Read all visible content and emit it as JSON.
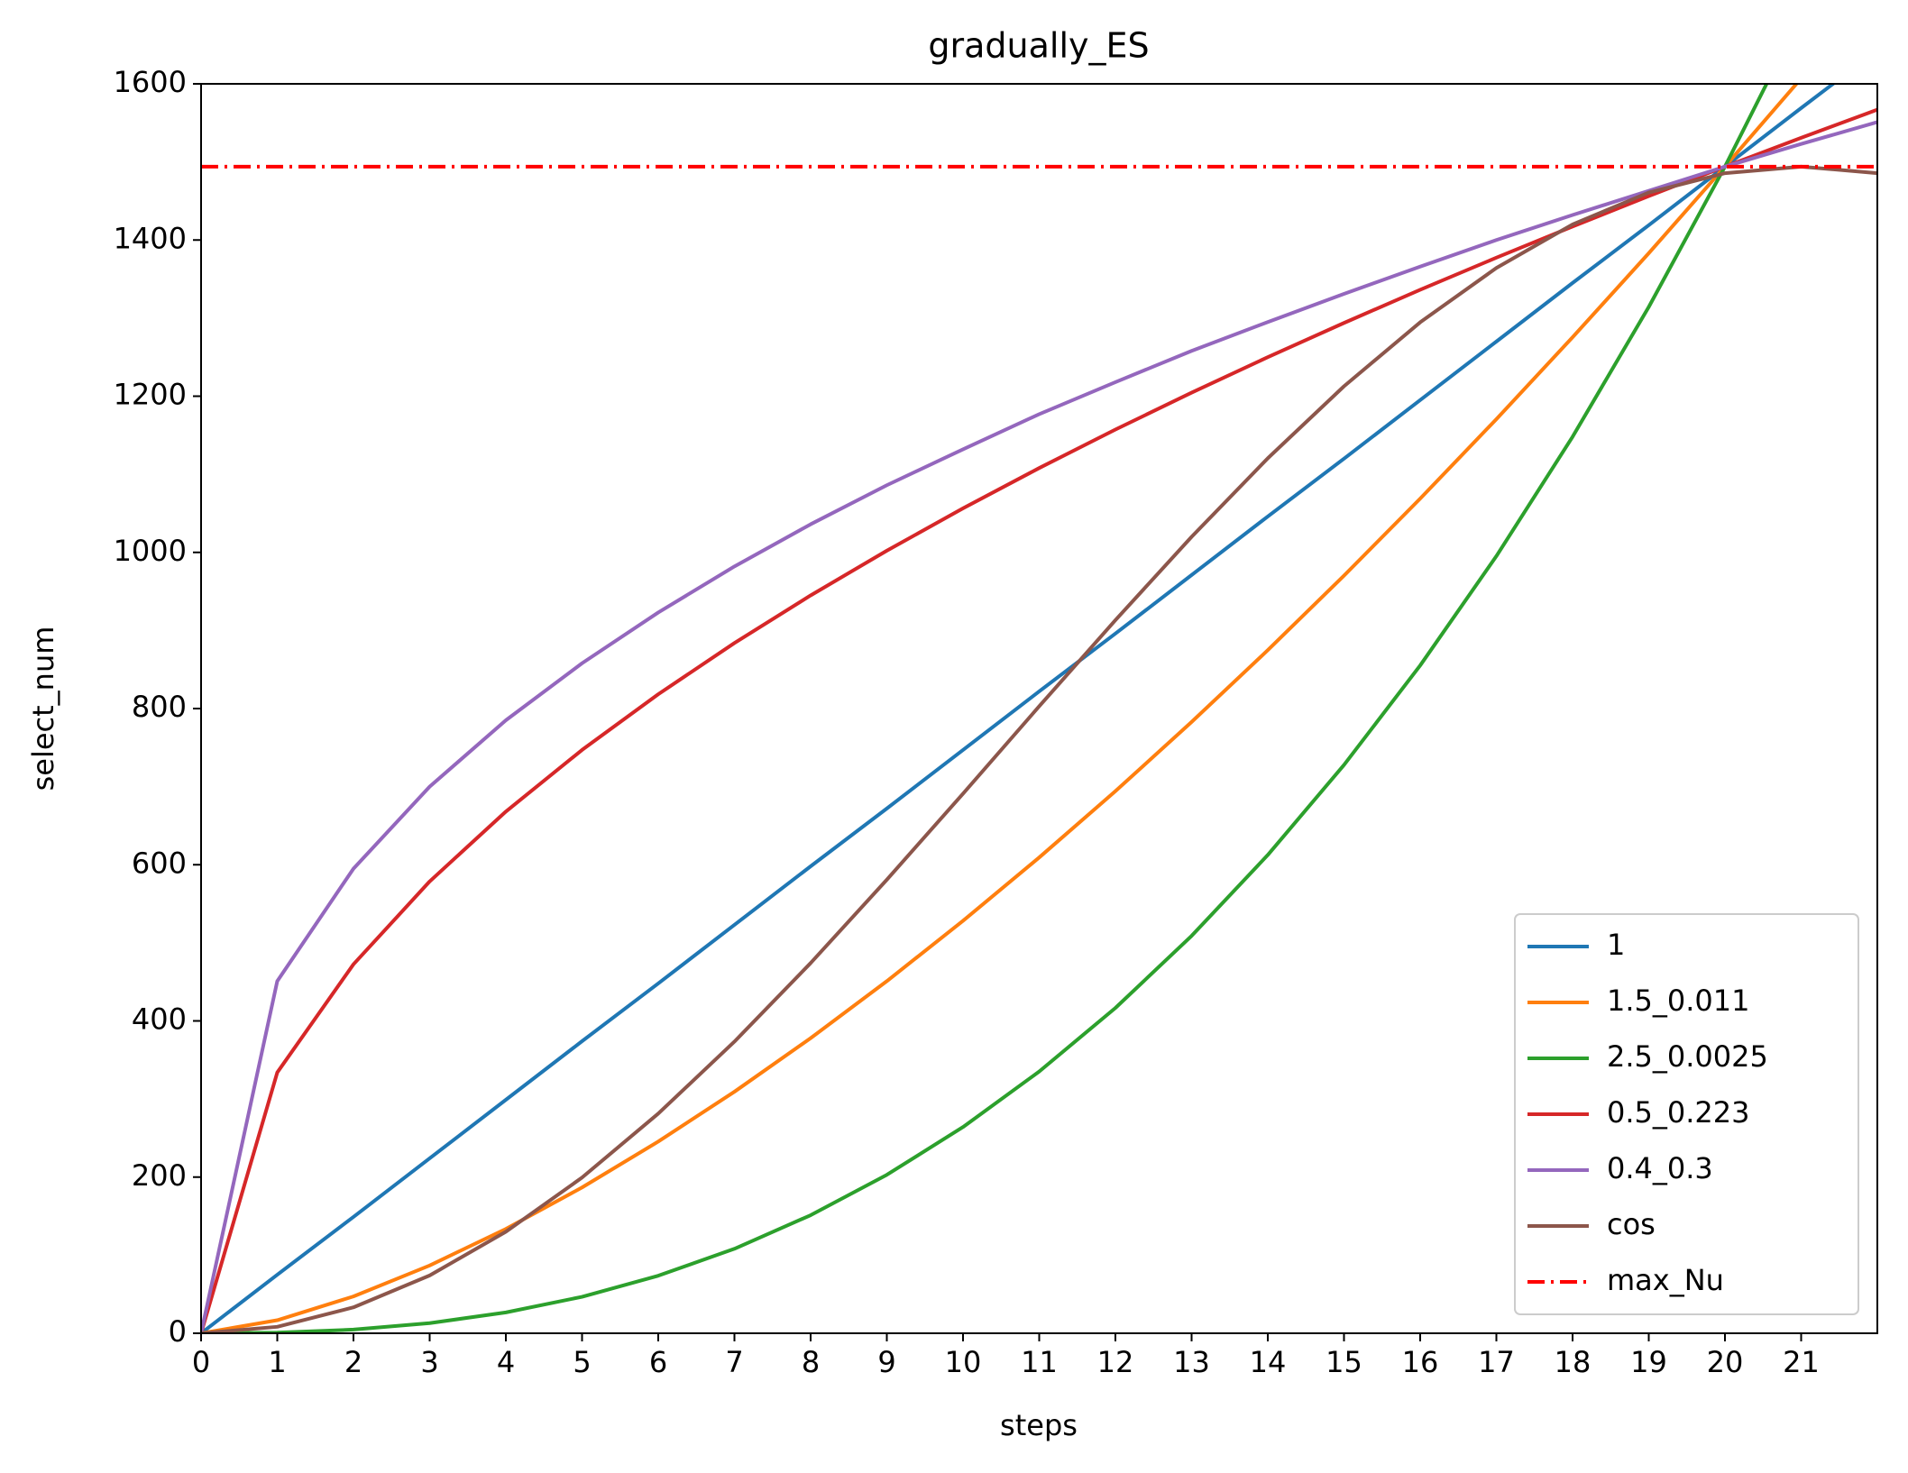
{
  "chart_data": {
    "type": "line",
    "title": "gradually_ES",
    "x_label": "steps",
    "y_label": "select_num",
    "x": [
      0,
      1,
      2,
      3,
      4,
      5,
      6,
      7,
      8,
      9,
      10,
      11,
      12,
      13,
      14,
      15,
      16,
      17,
      18,
      19,
      20,
      21,
      22
    ],
    "series": [
      {
        "name": "1",
        "color": "#1f77b4",
        "values": [
          0,
          75,
          149,
          224,
          299,
          374,
          448,
          523,
          598,
          672,
          747,
          822,
          896,
          971,
          1046,
          1120,
          1195,
          1270,
          1345,
          1419,
          1494,
          1569,
          1643
        ]
      },
      {
        "name": "1.5_0.011",
        "color": "#ff7f0e",
        "values": [
          0,
          16.7,
          47.2,
          86.8,
          133.6,
          186.7,
          245.5,
          309.3,
          377.9,
          450.9,
          528.2,
          609.3,
          694.2,
          782.8,
          874.8,
          970.2,
          1068.8,
          1170.6,
          1275.5,
          1383.1,
          1494,
          1607,
          1723
        ]
      },
      {
        "name": "2.5_0.0025",
        "color": "#2ca02c",
        "values": [
          0,
          0.8,
          4.7,
          13,
          26.7,
          46.7,
          73.7,
          108.2,
          151.2,
          202.9,
          264.1,
          335.2,
          416.6,
          508.9,
          612.5,
          727.8,
          855.2,
          995.2,
          1148,
          1314.3,
          1494,
          1688,
          1896
        ]
      },
      {
        "name": "0.5_0.223",
        "color": "#d62728",
        "values": [
          0,
          334,
          472.5,
          578.6,
          668.1,
          747,
          818.3,
          883.9,
          944.9,
          1002.2,
          1056.4,
          1108,
          1157.3,
          1204.5,
          1250,
          1293.8,
          1336.3,
          1377.4,
          1417.3,
          1456.2,
          1494,
          1530.9,
          1566.9
        ]
      },
      {
        "name": "0.4_0.3",
        "color": "#9467bd",
        "values": [
          0,
          451,
          595,
          700,
          785,
          858,
          923,
          982,
          1036,
          1086,
          1132,
          1177,
          1218,
          1258,
          1295,
          1331,
          1366,
          1400,
          1432,
          1463,
          1494,
          1523,
          1551
        ]
      },
      {
        "name": "cos",
        "color": "#8c564b",
        "values": [
          0,
          8.3,
          33.2,
          74,
          130,
          199.4,
          281.3,
          373.5,
          474.1,
          580.8,
          691,
          802.9,
          913.2,
          1019.9,
          1120.5,
          1212.7,
          1294.6,
          1364.2,
          1420,
          1460.8,
          1485.6,
          1494,
          1485.6
        ]
      }
    ],
    "hlines": [
      {
        "name": "max_Nu",
        "value": 1494,
        "color": "#ff0000",
        "style": "dashdot"
      }
    ],
    "xlim": [
      0,
      22
    ],
    "xticks": [
      0,
      1,
      2,
      3,
      4,
      5,
      6,
      7,
      8,
      9,
      10,
      11,
      12,
      13,
      14,
      15,
      16,
      17,
      18,
      19,
      20,
      21
    ],
    "ylim": [
      0,
      1600
    ],
    "yticks": [
      0,
      200,
      400,
      600,
      800,
      1000,
      1200,
      1400,
      1600
    ],
    "legend": "lower right",
    "grid": false
  }
}
